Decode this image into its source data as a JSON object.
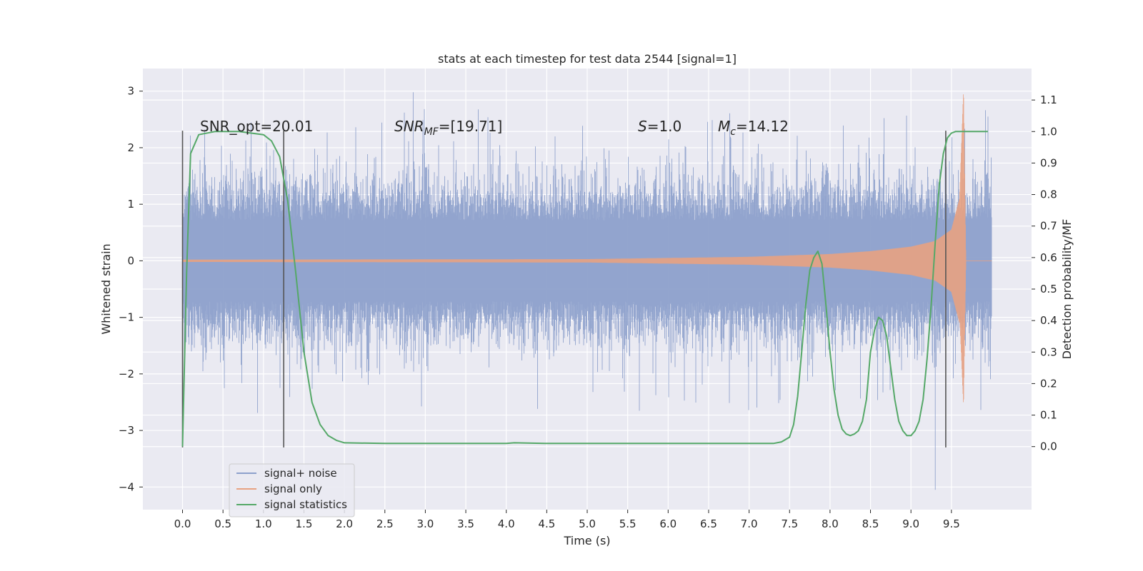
{
  "chart_data": {
    "type": "line",
    "title": "stats at each timestep for test data 2544 [signal=1]",
    "xlabel": "Time (s)",
    "ylabel_left": "Whitened strain",
    "ylabel_right": "Detection probability/MF",
    "xlim": [
      -0.49,
      10.49
    ],
    "ylim_left": [
      -4.4,
      3.4
    ],
    "ylim_right": [
      -0.2,
      1.2
    ],
    "x_ticks": [
      "0.0",
      "0.5",
      "1.0",
      "1.5",
      "2.0",
      "2.5",
      "3.0",
      "3.5",
      "4.0",
      "4.5",
      "5.0",
      "5.5",
      "6.0",
      "6.5",
      "7.0",
      "7.5",
      "8.0",
      "8.5",
      "9.0",
      "9.5"
    ],
    "y_ticks_left": [
      "3",
      "2",
      "1",
      "0",
      "−1",
      "−2",
      "−3",
      "−4"
    ],
    "y_ticks_right": [
      "1.1",
      "1.0",
      "0.9",
      "0.8",
      "0.7",
      "0.6",
      "0.5",
      "0.4",
      "0.3",
      "0.2",
      "0.1",
      "0.0"
    ],
    "grid": true,
    "legend_position": "lower-left",
    "annotations": {
      "snr_opt": "SNR_opt=20.01",
      "snr_mf_base": "SNR",
      "snr_mf_sub": "MF",
      "snr_mf_value": "=[19.71]",
      "s_italic": "S",
      "s_value": "=1.0",
      "mc_base": "M",
      "mc_sub": "c",
      "mc_value": "=14.12"
    },
    "vertical_lines": {
      "x": [
        0.0,
        1.25,
        9.43
      ],
      "y_range": [
        -3.3,
        2.3
      ],
      "color": "#555555"
    },
    "series": [
      {
        "name": "signal+ noise",
        "color": "#8da0cb",
        "axis": "left",
        "x_range": [
          0.0,
          10.0
        ],
        "typical_envelope": 1.3,
        "max_value": 2.98,
        "min_value": -4.05
      },
      {
        "name": "signal only",
        "color": "#e8a282",
        "axis": "left",
        "envelope_x": [
          0.0,
          5.0,
          6.0,
          7.0,
          8.0,
          8.5,
          9.0,
          9.3,
          9.5,
          9.6,
          9.65,
          9.68
        ],
        "envelope_y": [
          0.02,
          0.03,
          0.05,
          0.07,
          0.12,
          0.17,
          0.25,
          0.35,
          0.55,
          1.1,
          3.05,
          0.0
        ]
      },
      {
        "name": "signal statistics",
        "color": "#55a868",
        "axis": "right",
        "x": [
          0.0,
          0.05,
          0.1,
          0.2,
          0.4,
          0.7,
          1.0,
          1.1,
          1.2,
          1.3,
          1.4,
          1.5,
          1.6,
          1.7,
          1.8,
          1.9,
          2.0,
          2.5,
          3.0,
          3.5,
          4.0,
          4.1,
          4.5,
          5.0,
          5.5,
          6.0,
          6.5,
          7.0,
          7.3,
          7.4,
          7.5,
          7.55,
          7.6,
          7.65,
          7.7,
          7.75,
          7.8,
          7.85,
          7.9,
          7.95,
          8.0,
          8.05,
          8.1,
          8.15,
          8.2,
          8.25,
          8.3,
          8.35,
          8.4,
          8.45,
          8.5,
          8.55,
          8.6,
          8.65,
          8.7,
          8.75,
          8.8,
          8.85,
          8.9,
          8.95,
          9.0,
          9.05,
          9.1,
          9.15,
          9.2,
          9.25,
          9.3,
          9.35,
          9.4,
          9.45,
          9.5,
          9.55,
          9.6,
          9.65,
          9.7,
          9.8,
          9.9,
          9.95
        ],
        "values": [
          0.0,
          0.55,
          0.93,
          0.99,
          1.0,
          1.0,
          0.99,
          0.97,
          0.92,
          0.78,
          0.55,
          0.3,
          0.14,
          0.07,
          0.035,
          0.02,
          0.012,
          0.01,
          0.01,
          0.01,
          0.01,
          0.012,
          0.01,
          0.01,
          0.01,
          0.01,
          0.01,
          0.01,
          0.01,
          0.015,
          0.03,
          0.07,
          0.16,
          0.3,
          0.45,
          0.56,
          0.6,
          0.62,
          0.58,
          0.45,
          0.3,
          0.18,
          0.1,
          0.055,
          0.04,
          0.035,
          0.04,
          0.05,
          0.08,
          0.15,
          0.3,
          0.37,
          0.41,
          0.4,
          0.35,
          0.25,
          0.15,
          0.08,
          0.05,
          0.035,
          0.035,
          0.05,
          0.08,
          0.15,
          0.28,
          0.45,
          0.65,
          0.83,
          0.93,
          0.98,
          0.995,
          1.0,
          1.0,
          1.0,
          1.0,
          1.0,
          1.0,
          1.0
        ]
      }
    ]
  }
}
